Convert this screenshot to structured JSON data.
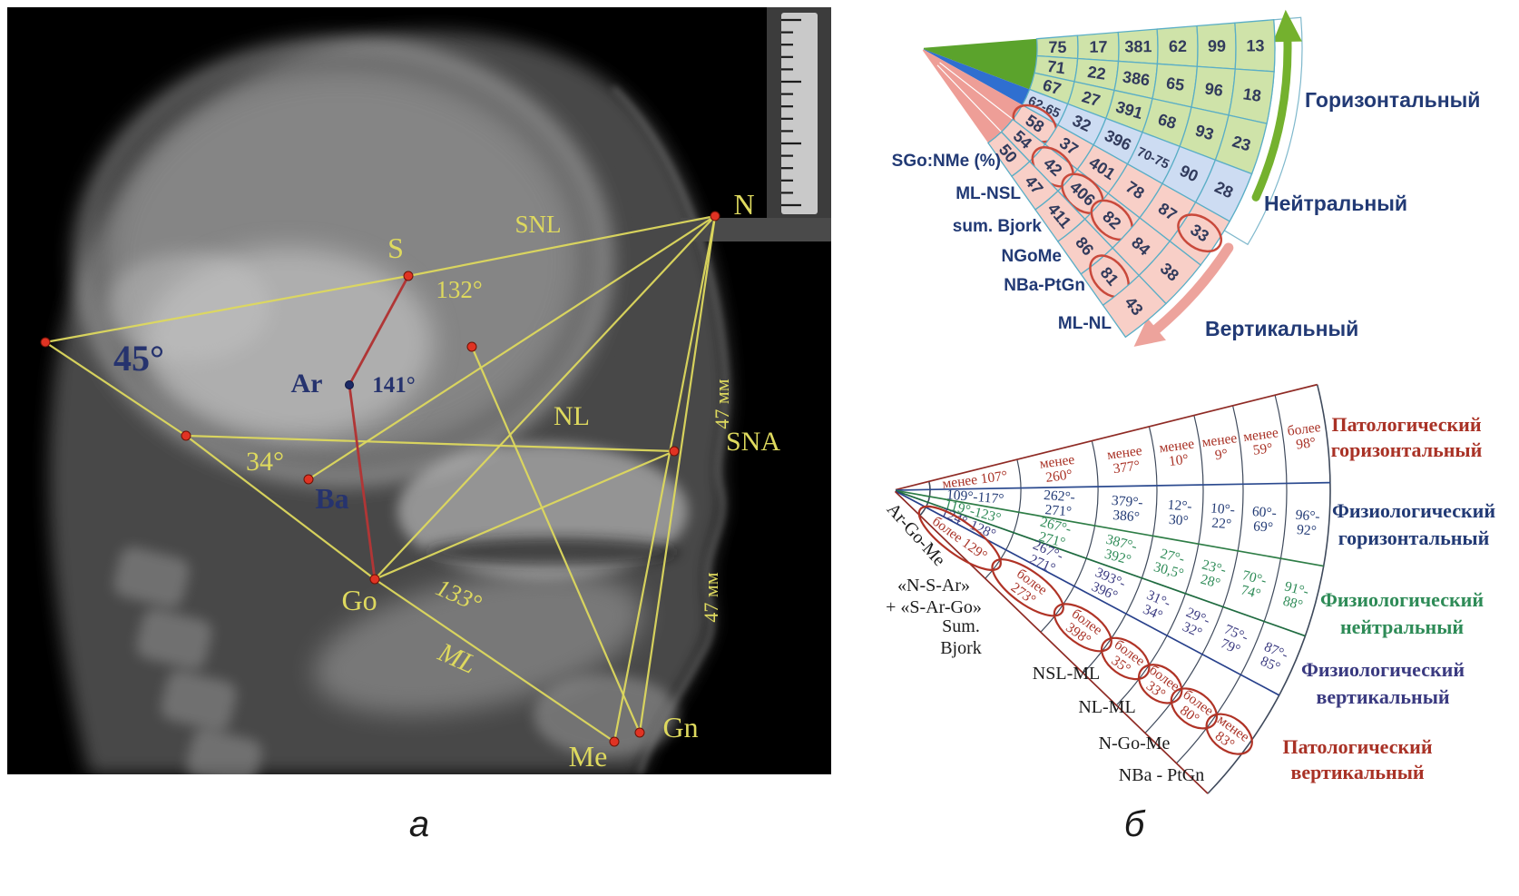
{
  "captions": {
    "a": "а",
    "b": "б"
  },
  "xray": {
    "bg": "#000000",
    "accent_yellow": "#ded95e",
    "accent_navy": "#26336e",
    "dot_red": "#e03323",
    "dot_navy": "#1c2a66",
    "red_line": "#b03636",
    "point_labels": {
      "S": "S",
      "N": "N",
      "Ar": "Ar",
      "Ba": "Ba",
      "Go": "Go",
      "Me": "Me",
      "Gn": "Gn"
    },
    "line_labels": {
      "SNL": "SNL",
      "NL": "NL",
      "ML": "ML",
      "SNA": "SNA"
    },
    "angle_labels": {
      "angle_45": "45°",
      "angle_132": "132°",
      "angle_141": "141°",
      "angle_34": "34°",
      "angle_133": "133°"
    },
    "measurements": {
      "upper": "47 мм",
      "lower": "47 мм"
    }
  },
  "top_fan": {
    "left_labels": [
      "SGo:NMe (%)",
      "ML-NSL",
      "sum. Bjork",
      "NGoMe",
      "NBa-PtGn",
      "ML-NL"
    ],
    "zone_labels": {
      "horizontal": "Горизонтальный",
      "neutral": "Нейтральный",
      "vertical": "Вертикальный"
    },
    "wedges": [
      {
        "zone": "horizontal",
        "values": [
          "75",
          "17",
          "381",
          "62",
          "99",
          "13"
        ],
        "circled": []
      },
      {
        "zone": "horizontal",
        "values": [
          "71",
          "22",
          "386",
          "65",
          "96",
          "18"
        ],
        "circled": []
      },
      {
        "zone": "horizontal",
        "values": [
          "67",
          "27",
          "391",
          "68",
          "93",
          "23"
        ],
        "circled": []
      },
      {
        "zone": "neutral",
        "values": [
          "62-65",
          "32",
          "396",
          "70-75",
          "90",
          "28"
        ],
        "circled": []
      },
      {
        "zone": "vertical",
        "values": [
          "58",
          "37",
          "401",
          "78",
          "87",
          "33"
        ],
        "circled": [
          0,
          5
        ]
      },
      {
        "zone": "vertical",
        "values": [
          "54",
          "42",
          "406",
          "82",
          "84",
          "38"
        ],
        "circled": [
          1,
          2,
          3
        ]
      },
      {
        "zone": "vertical",
        "values": [
          "50",
          "47",
          "411",
          "86",
          "81",
          "43"
        ],
        "circled": [
          4
        ]
      }
    ],
    "colors": {
      "horizontal_fill": "#cfe3a9",
      "neutral_fill": "#cddcf2",
      "vertical_fill": "#f8cfc7",
      "apex_green": "#5ba32c",
      "apex_blue": "#2f6fd0",
      "apex_pink": "#ee9e97",
      "grid": "#5aaec6",
      "text": "#323b5c",
      "label": "#223a75",
      "circle": "#c9493b",
      "green_arrow": "#74b12e",
      "pink_arrow": "#eda39c"
    }
  },
  "bottom_fan": {
    "column_labels": [
      [
        "Ar-Go-Me"
      ],
      [
        "«N-S-Ar»",
        "+ «S-Ar-Go»"
      ],
      [
        "Sum.",
        "Bjork"
      ],
      [
        "NSL-ML"
      ],
      [
        "NL-ML"
      ],
      [
        "N-Go-Me"
      ],
      [
        "NBa - PtGn"
      ]
    ],
    "rows": [
      {
        "label": "Патологический горизонтальный",
        "color": "#a93226",
        "values": [
          "менее 107°",
          "менее 260°",
          "менее 377°",
          "менее 10°",
          "менее 9°",
          "менее 59°",
          "более 98°"
        ],
        "circled": false
      },
      {
        "label": "Физиологический горизонтальный",
        "color": "#223a75",
        "values": [
          "109°-117°",
          "262°-271°",
          "379°-386°",
          "12°-30°",
          "10°-22°",
          "60°-69°",
          "96°-92°"
        ],
        "circled": false
      },
      {
        "label": "Физиологический нейтральный",
        "color": "#2e8b57",
        "values": [
          "119°-123°",
          "267°-271°",
          "387°-392°",
          "27°-30,5°",
          "23°-28°",
          "70°-74°",
          "91°-88°"
        ],
        "circled": false
      },
      {
        "label": "Физиологический вертикальный",
        "color": "#3a3a80",
        "values": [
          "124°-128°",
          "267°-271°",
          "393°-396°",
          "31°-34°",
          "29°-32°",
          "75°-79°",
          "87°-85°"
        ],
        "circled": false
      },
      {
        "label": "Патологический вертикальный",
        "color": "#a93226",
        "values": [
          "более 129°",
          "более 273°",
          "более 398°",
          "более 35°",
          "более 33°",
          "более 80°",
          "менее 83°"
        ],
        "circled": true
      }
    ],
    "grid_color": "#3f4a5c",
    "boundary_colors": [
      "#8f2b25",
      "#2b4a8f",
      "#2e7d46",
      "#1f6b40",
      "#27408b",
      "#8f2b25"
    ],
    "circle_color": "#b03326",
    "column_label_color": "#1c1c1c"
  }
}
